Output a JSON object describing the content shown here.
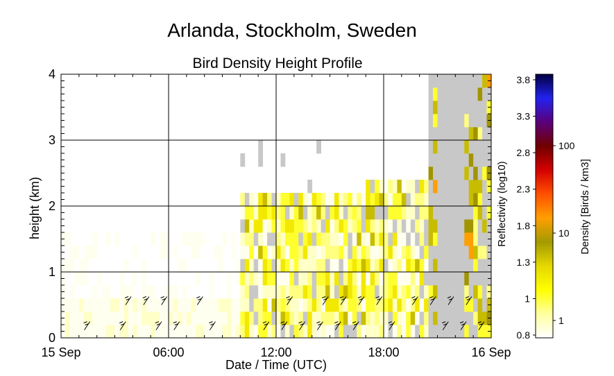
{
  "chart_data": {
    "type": "heatmap",
    "title": "Arlanda, Stockholm, Sweden",
    "subtitle": "Bird Density Height Profile",
    "xlabel": "Date / Time (UTC)",
    "ylabel": "height (km)",
    "x_unit": "hours since 15 Sep 00:00 UTC",
    "xlim": [
      0,
      24
    ],
    "ylim": [
      0,
      4
    ],
    "xticks": [
      {
        "value": 0,
        "label": "15 Sep"
      },
      {
        "value": 6,
        "label": "06:00"
      },
      {
        "value": 12,
        "label": "12:00"
      },
      {
        "value": 18,
        "label": "18:00"
      },
      {
        "value": 24,
        "label": "16 Sep"
      }
    ],
    "yticks": [
      {
        "value": 0,
        "label": "0"
      },
      {
        "value": 1,
        "label": "1"
      },
      {
        "value": 2,
        "label": "2"
      },
      {
        "value": 3,
        "label": "3"
      },
      {
        "value": 4,
        "label": "4"
      }
    ],
    "grid": true,
    "colorbar": {
      "label_left": "Reflectivity (log10)",
      "label_right": "Density [Birds / km3]",
      "reflectivity_ticks": [
        "0.8",
        "1",
        "1.3",
        "1.8",
        "2.3",
        "2.8",
        "3.3",
        "3.8"
      ],
      "density_ticks": [
        "1",
        "10",
        "100"
      ],
      "colors_bottom_to_top": [
        "#ffffff",
        "#ffffa0",
        "#ffff00",
        "#e5d800",
        "#a39a00",
        "#ff9f00",
        "#ff5000",
        "#d40000",
        "#700000",
        "#5a007a",
        "#2222ee",
        "#000040"
      ]
    },
    "no_data_color": "#c8c8c8",
    "wind_barbs": "black barbs in the lower levels through the day",
    "notes": "Light density (pale yellow) overnight below 0.6 km; patchy yellow between 0.2 and 2.2 km from ~10:00 to ~20:00; grey no-data region dominant after ~20:30 with dark yellow/orange patches at 2.5–4 km near 23:00–24:00."
  }
}
